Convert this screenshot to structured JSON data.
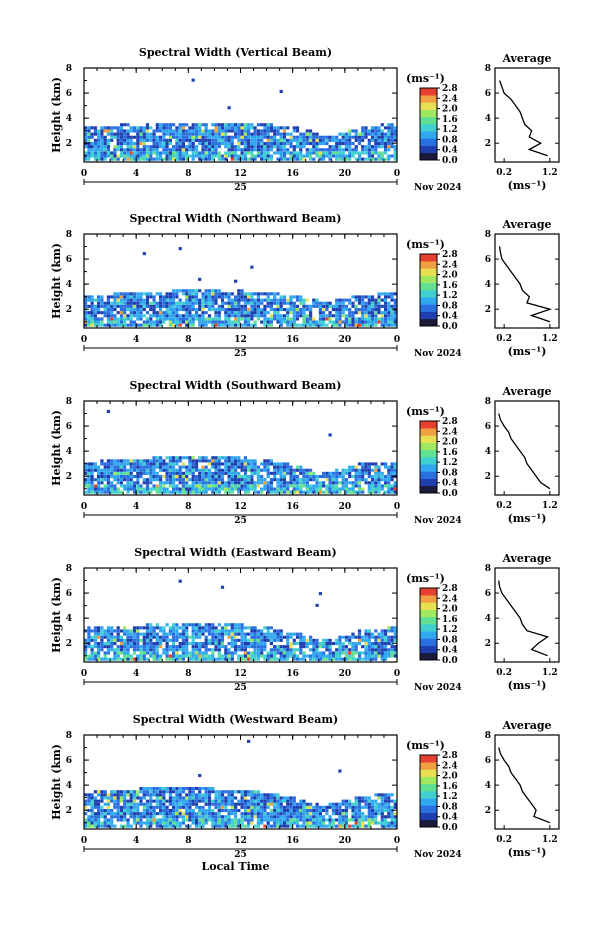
{
  "chart_data": [
    {
      "type": "heatmap",
      "title": "Spectral Width (Vertical Beam)",
      "ylabel": "Height (km)",
      "x_ticks": [
        "0",
        "4",
        "8",
        "12",
        "16",
        "20",
        "0"
      ],
      "day_label": "25",
      "date_label": "Nov 2024",
      "xlim": [
        0,
        24
      ],
      "ylim": [
        0.5,
        8
      ],
      "y_ticks": [
        "2",
        "4",
        "6",
        "8"
      ],
      "colorbar": {
        "unit": "(ms⁻¹)",
        "ticks": [
          "0.0",
          "0.4",
          "0.8",
          "1.2",
          "1.6",
          "2.0",
          "2.4",
          "2.8"
        ],
        "range": [
          0.0,
          2.8
        ]
      },
      "echo_top_km": [
        3.2,
        3.3,
        3.3,
        3.4,
        3.3,
        3.4,
        3.5,
        3.5,
        3.6,
        3.6,
        3.5,
        3.5,
        3.6,
        3.6,
        3.4,
        3.3,
        3.2,
        3.0,
        2.6,
        2.6,
        2.8,
        3.1,
        3.3,
        3.4,
        3.4
      ],
      "profile": {
        "title": "Average",
        "xlabel": "(ms⁻¹)",
        "x_ticks": [
          "0.2",
          "1.2"
        ],
        "xlim": [
          0.0,
          1.4
        ],
        "y_ticks": [
          "2",
          "4",
          "6",
          "8"
        ],
        "ylim": [
          0.5,
          8
        ],
        "height_km": [
          1.0,
          1.5,
          2.0,
          2.5,
          3.0,
          3.5,
          4.0,
          4.5,
          5.0,
          5.5,
          6.0,
          6.5,
          7.0
        ],
        "width_ms": [
          1.15,
          0.75,
          1.0,
          0.75,
          0.8,
          0.65,
          0.6,
          0.55,
          0.45,
          0.35,
          0.2,
          0.15,
          0.1
        ]
      }
    },
    {
      "type": "heatmap",
      "title": "Spectral Width (Northward Beam)",
      "ylabel": "Height (km)",
      "x_ticks": [
        "0",
        "4",
        "8",
        "12",
        "16",
        "20",
        "0"
      ],
      "day_label": "25",
      "date_label": "Nov 2024",
      "xlim": [
        0,
        24
      ],
      "ylim": [
        0.5,
        8
      ],
      "y_ticks": [
        "2",
        "4",
        "6",
        "8"
      ],
      "colorbar": {
        "unit": "(ms⁻¹)",
        "ticks": [
          "0.0",
          "0.4",
          "0.8",
          "1.2",
          "1.6",
          "2.0",
          "2.4",
          "2.8"
        ],
        "range": [
          0.0,
          2.8
        ]
      },
      "echo_top_km": [
        3.0,
        3.1,
        3.1,
        3.2,
        3.2,
        3.3,
        3.3,
        3.4,
        3.5,
        3.5,
        3.4,
        3.3,
        3.4,
        3.3,
        3.2,
        3.1,
        3.0,
        2.8,
        2.6,
        2.6,
        2.8,
        3.0,
        3.1,
        3.2,
        3.2
      ],
      "profile": {
        "title": "Average",
        "xlabel": "(ms⁻¹)",
        "x_ticks": [
          "0.2",
          "1.2"
        ],
        "xlim": [
          0.0,
          1.4
        ],
        "y_ticks": [
          "2",
          "4",
          "6",
          "8"
        ],
        "ylim": [
          0.5,
          8
        ],
        "height_km": [
          1.0,
          1.5,
          2.0,
          2.5,
          3.0,
          3.5,
          4.0,
          4.5,
          5.0,
          5.5,
          6.0,
          6.5,
          7.0
        ],
        "width_ms": [
          1.2,
          0.8,
          1.2,
          0.7,
          0.75,
          0.6,
          0.55,
          0.45,
          0.35,
          0.25,
          0.15,
          0.12,
          0.1
        ]
      }
    },
    {
      "type": "heatmap",
      "title": "Spectral Width (Southward Beam)",
      "ylabel": "Height (km)",
      "x_ticks": [
        "0",
        "4",
        "8",
        "12",
        "16",
        "20",
        "0"
      ],
      "day_label": "25",
      "date_label": "Nov 2024",
      "xlim": [
        0,
        24
      ],
      "ylim": [
        0.5,
        8
      ],
      "y_ticks": [
        "2",
        "4",
        "6",
        "8"
      ],
      "colorbar": {
        "unit": "(ms⁻¹)",
        "ticks": [
          "0.0",
          "0.4",
          "0.8",
          "1.2",
          "1.6",
          "2.0",
          "2.4",
          "2.8"
        ],
        "range": [
          0.0,
          2.8
        ]
      },
      "echo_top_km": [
        3.0,
        3.1,
        3.2,
        3.2,
        3.3,
        3.4,
        3.4,
        3.5,
        3.5,
        3.5,
        3.4,
        3.4,
        3.4,
        3.3,
        3.2,
        3.0,
        2.8,
        2.5,
        2.2,
        2.3,
        2.6,
        2.9,
        3.0,
        3.1,
        3.1
      ],
      "profile": {
        "title": "Average",
        "xlabel": "(ms⁻¹)",
        "x_ticks": [
          "0.2",
          "1.2"
        ],
        "xlim": [
          0.0,
          1.4
        ],
        "y_ticks": [
          "2",
          "4",
          "6",
          "8"
        ],
        "ylim": [
          0.5,
          8
        ],
        "height_km": [
          1.0,
          1.5,
          2.0,
          2.5,
          3.0,
          3.5,
          4.0,
          4.5,
          5.0,
          5.5,
          6.0,
          6.5,
          7.0
        ],
        "width_ms": [
          1.2,
          1.0,
          0.9,
          0.8,
          0.7,
          0.65,
          0.55,
          0.45,
          0.35,
          0.3,
          0.2,
          0.12,
          0.08
        ]
      }
    },
    {
      "type": "heatmap",
      "title": "Spectral Width (Eastward Beam)",
      "ylabel": "Height (km)",
      "x_ticks": [
        "0",
        "4",
        "8",
        "12",
        "16",
        "20",
        "0"
      ],
      "day_label": "25",
      "date_label": "Nov 2024",
      "xlim": [
        0,
        24
      ],
      "ylim": [
        0.5,
        8
      ],
      "y_ticks": [
        "2",
        "4",
        "6",
        "8"
      ],
      "colorbar": {
        "unit": "(ms⁻¹)",
        "ticks": [
          "0.0",
          "0.4",
          "0.8",
          "1.2",
          "1.6",
          "2.0",
          "2.4",
          "2.8"
        ],
        "range": [
          0.0,
          2.8
        ]
      },
      "echo_top_km": [
        3.1,
        3.2,
        3.2,
        3.3,
        3.3,
        3.4,
        3.4,
        3.5,
        3.5,
        3.5,
        3.4,
        3.4,
        3.4,
        3.3,
        3.2,
        3.0,
        2.8,
        2.5,
        2.2,
        2.3,
        2.6,
        2.9,
        3.0,
        3.1,
        3.2
      ],
      "profile": {
        "title": "Average",
        "xlabel": "(ms⁻¹)",
        "x_ticks": [
          "0.2",
          "1.2"
        ],
        "xlim": [
          0.0,
          1.4
        ],
        "y_ticks": [
          "2",
          "4",
          "6",
          "8"
        ],
        "ylim": [
          0.5,
          8
        ],
        "height_km": [
          1.0,
          1.5,
          2.0,
          2.5,
          3.0,
          3.5,
          4.0,
          4.5,
          5.0,
          5.5,
          6.0,
          6.5,
          7.0
        ],
        "width_ms": [
          1.15,
          0.8,
          0.95,
          1.15,
          0.7,
          0.6,
          0.55,
          0.45,
          0.35,
          0.25,
          0.15,
          0.1,
          0.08
        ]
      }
    },
    {
      "type": "heatmap",
      "title": "Spectral Width (Westward Beam)",
      "ylabel": "Height (km)",
      "xlabel": "Local Time",
      "x_ticks": [
        "0",
        "4",
        "8",
        "12",
        "16",
        "20",
        "0"
      ],
      "day_label": "25",
      "date_label": "Nov 2024",
      "xlim": [
        0,
        24
      ],
      "ylim": [
        0.5,
        8
      ],
      "y_ticks": [
        "2",
        "4",
        "6",
        "8"
      ],
      "colorbar": {
        "unit": "(ms⁻¹)",
        "ticks": [
          "0.0",
          "0.4",
          "0.8",
          "1.2",
          "1.6",
          "2.0",
          "2.4",
          "2.8"
        ],
        "range": [
          0.0,
          2.8
        ]
      },
      "echo_top_km": [
        3.3,
        3.4,
        3.5,
        3.6,
        3.6,
        3.7,
        3.7,
        3.8,
        3.8,
        3.7,
        3.6,
        3.5,
        3.5,
        3.4,
        3.3,
        3.1,
        2.9,
        2.6,
        2.3,
        2.4,
        2.7,
        3.0,
        3.1,
        3.2,
        3.2
      ],
      "profile": {
        "title": "Average",
        "xlabel": "(ms⁻¹)",
        "x_ticks": [
          "0.2",
          "1.2"
        ],
        "xlim": [
          0.0,
          1.4
        ],
        "y_ticks": [
          "2",
          "4",
          "6",
          "8"
        ],
        "ylim": [
          0.5,
          8
        ],
        "height_km": [
          1.0,
          1.5,
          2.0,
          2.5,
          3.0,
          3.5,
          4.0,
          4.5,
          5.0,
          5.5,
          6.0,
          6.5,
          7.0
        ],
        "width_ms": [
          1.2,
          0.85,
          0.9,
          0.8,
          0.7,
          0.6,
          0.55,
          0.45,
          0.35,
          0.3,
          0.2,
          0.12,
          0.08
        ]
      }
    }
  ],
  "colors": {
    "scale": [
      "#1a1a3a",
      "#1f3fb0",
      "#2a6fe0",
      "#30a8f0",
      "#40d0d0",
      "#60e090",
      "#a0e860",
      "#e8e050",
      "#f0a040",
      "#e84030"
    ],
    "axis": "#000000"
  }
}
